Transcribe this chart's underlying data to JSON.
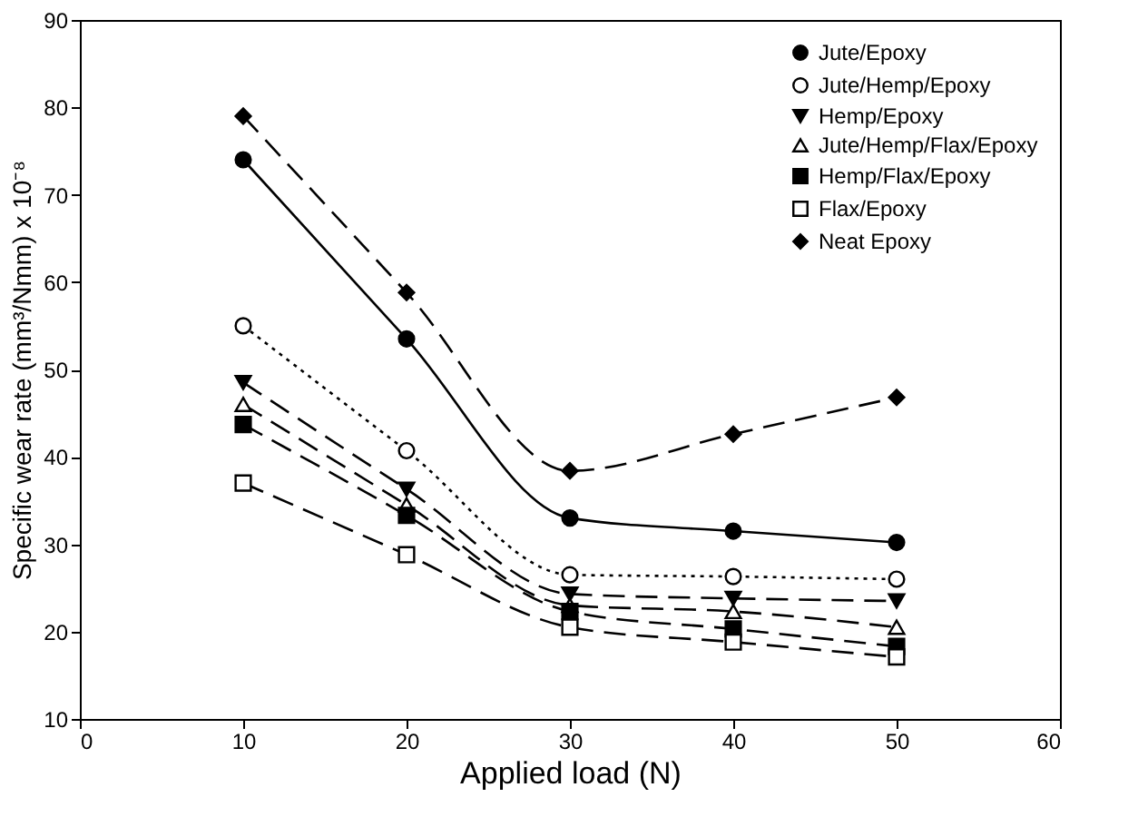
{
  "chart_data": {
    "type": "line",
    "xlabel": "Applied load (N)",
    "ylabel": "Specific wear rate (mm³/Nmm) x 10⁻⁸",
    "x": [
      10,
      20,
      30,
      40,
      50
    ],
    "xlim": [
      0,
      60
    ],
    "xticks": [
      0,
      10,
      20,
      30,
      40,
      50,
      60
    ],
    "ylim": [
      10,
      90
    ],
    "yticks": [
      10,
      20,
      30,
      40,
      50,
      60,
      70,
      80,
      90
    ],
    "grid": false,
    "legend": "top right",
    "series": [
      {
        "name": "Jute/Epoxy",
        "color": "#000000",
        "marker": "circle",
        "line_style": "solid",
        "values": [
          74,
          53.5,
          33,
          31.5,
          30.2
        ]
      },
      {
        "name": "Jute/Hemp/Epoxy",
        "color": "#000000",
        "marker": "circle-open",
        "line_style": "dotted",
        "values": [
          55,
          40.7,
          26.5,
          26.3,
          26
        ]
      },
      {
        "name": "Hemp/Epoxy",
        "color": "#000000",
        "marker": "triangle-down",
        "line_style": "dashed",
        "values": [
          48.5,
          36.3,
          24.3,
          23.8,
          23.5
        ]
      },
      {
        "name": "Jute/Hemp/Flax/Epoxy",
        "color": "#000000",
        "marker": "triangle-open",
        "line_style": "dashed",
        "values": [
          46,
          34.5,
          23,
          22.3,
          20.5
        ]
      },
      {
        "name": "Hemp/Flax/Epoxy",
        "color": "#000000",
        "marker": "square",
        "line_style": "dashed",
        "values": [
          43.7,
          33.3,
          22.3,
          20.3,
          18.3
        ]
      },
      {
        "name": "Flax/Epoxy",
        "color": "#000000",
        "marker": "square-open",
        "line_style": "dashed",
        "values": [
          37,
          28.8,
          20.5,
          18.8,
          17.1
        ]
      },
      {
        "name": "Neat Epoxy",
        "color": "#000000",
        "marker": "diamond",
        "line_style": "dashed",
        "values": [
          79,
          58.8,
          38.4,
          42.6,
          46.8
        ]
      }
    ]
  }
}
